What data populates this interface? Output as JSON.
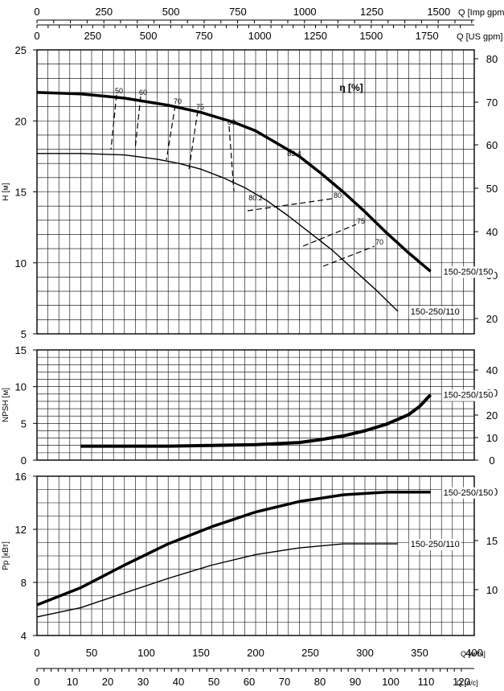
{
  "axes_top": {
    "imp_gpm": {
      "label": "Q [Imp gpm",
      "ticks": [
        "0",
        "250",
        "500",
        "750",
        "1000",
        "1250",
        "1500"
      ]
    },
    "us_gpm": {
      "label": "Q [US gpm]",
      "ticks": [
        "0",
        "250",
        "500",
        "750",
        "1000",
        "1250",
        "1500",
        "1750"
      ]
    }
  },
  "axes_bottom": {
    "m3h": {
      "label": "Q [м³/ч]",
      "ticks": [
        "0",
        "50",
        "100",
        "150",
        "200",
        "250",
        "300",
        "350",
        "400"
      ]
    },
    "ls": {
      "label": "Q [л/с]",
      "ticks": [
        "0",
        "10",
        "20",
        "30",
        "40",
        "50",
        "60",
        "70",
        "80",
        "90",
        "100",
        "110",
        "120"
      ]
    }
  },
  "chart_data": [
    {
      "type": "line",
      "panel": "head",
      "ylabel": "H [м]",
      "xlabel": "Q [м³/ч]",
      "xlim": [
        0,
        400
      ],
      "ylim": [
        5,
        25
      ],
      "y_ticks": [
        "5",
        "10",
        "15",
        "20",
        "25"
      ],
      "right_axis": {
        "label": "",
        "ticks": [
          "20",
          "30",
          "40",
          "50",
          "60",
          "70",
          "80"
        ]
      },
      "efficiency_label": "η [%]",
      "grid": true,
      "series": [
        {
          "name": "150-250/150",
          "x": [
            0,
            40,
            80,
            120,
            150,
            180,
            200,
            220,
            240,
            260,
            280,
            300,
            320,
            340,
            360
          ],
          "y": [
            22.0,
            21.9,
            21.6,
            21.1,
            20.6,
            19.9,
            19.3,
            18.4,
            17.5,
            16.3,
            15.0,
            13.6,
            12.1,
            10.7,
            9.4
          ]
        },
        {
          "name": "150-250/110",
          "x": [
            0,
            40,
            80,
            110,
            130,
            150,
            170,
            190,
            210,
            230,
            250,
            270,
            290,
            310,
            330
          ],
          "y": [
            17.7,
            17.7,
            17.6,
            17.3,
            17.0,
            16.6,
            16.0,
            15.3,
            14.4,
            13.3,
            12.1,
            10.9,
            9.5,
            8.1,
            6.6
          ]
        }
      ],
      "efficiency_labels": [
        "50",
        "60",
        "70",
        "75",
        "80",
        "83.4",
        "80",
        "75",
        "70",
        "80.2"
      ]
    },
    {
      "type": "line",
      "panel": "npsh",
      "ylabel": "NPSH [м]",
      "xlabel": "Q [м³/ч]",
      "xlim": [
        0,
        400
      ],
      "ylim": [
        0,
        15
      ],
      "y_ticks": [
        "0",
        "5",
        "10",
        "15"
      ],
      "right_axis": {
        "label": "",
        "ticks": [
          "0",
          "10",
          "20",
          "30",
          "40"
        ]
      },
      "grid": true,
      "series": [
        {
          "name": "150-250/150",
          "x": [
            40,
            80,
            120,
            160,
            200,
            240,
            260,
            280,
            300,
            320,
            340,
            350,
            360
          ],
          "y": [
            1.9,
            1.9,
            1.9,
            2.0,
            2.1,
            2.4,
            2.8,
            3.3,
            4.0,
            4.9,
            6.2,
            7.3,
            8.9
          ]
        }
      ]
    },
    {
      "type": "line",
      "panel": "power",
      "ylabel": "Pp [кВт]",
      "xlabel": "Q [м³/ч]",
      "xlim": [
        0,
        400
      ],
      "ylim": [
        4,
        16
      ],
      "y_ticks": [
        "4",
        "8",
        "12",
        "16"
      ],
      "right_axis": {
        "label": "",
        "ticks": [
          "10",
          "15",
          "20"
        ]
      },
      "grid": true,
      "series": [
        {
          "name": "150-250/150",
          "x": [
            0,
            40,
            80,
            120,
            160,
            200,
            240,
            280,
            320,
            360
          ],
          "y": [
            6.3,
            7.6,
            9.3,
            10.9,
            12.2,
            13.3,
            14.1,
            14.6,
            14.8,
            14.8
          ]
        },
        {
          "name": "150-250/110",
          "x": [
            0,
            40,
            80,
            120,
            160,
            200,
            240,
            280,
            300,
            330
          ],
          "y": [
            5.4,
            6.1,
            7.2,
            8.3,
            9.3,
            10.1,
            10.6,
            10.9,
            10.9,
            10.9
          ]
        }
      ]
    }
  ]
}
